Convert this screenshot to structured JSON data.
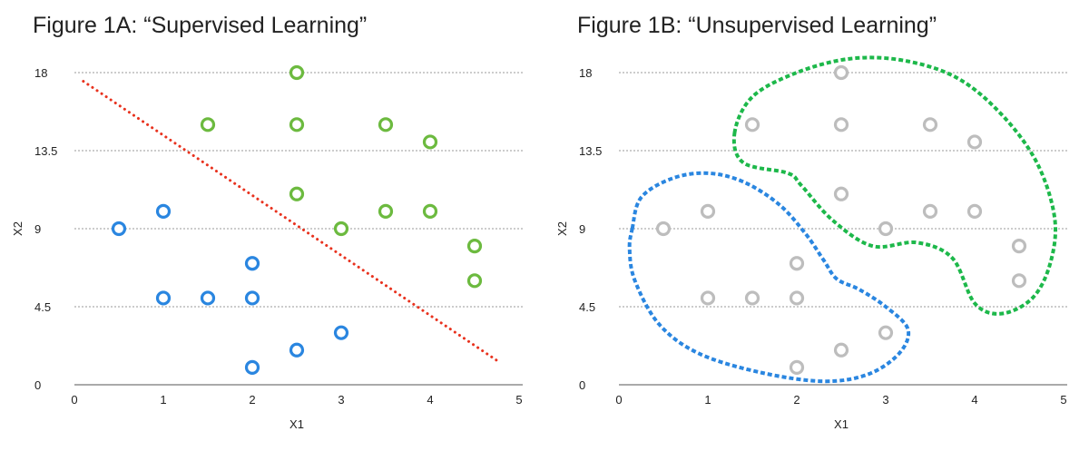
{
  "chart_data": [
    {
      "type": "scatter",
      "title": "Figure 1A: “Supervised Learning”",
      "xlabel": "X1",
      "ylabel": "X2",
      "xlim": [
        0,
        5
      ],
      "ylim": [
        0,
        18
      ],
      "xticks": [
        "0",
        "1",
        "2",
        "3",
        "4",
        "5"
      ],
      "yticks": [
        "0",
        "4.5",
        "9",
        "13.5",
        "18"
      ],
      "grid": "horizontal dotted",
      "series": [
        {
          "color": "#2a86e0",
          "points": [
            [
              0.5,
              9
            ],
            [
              1,
              10
            ],
            [
              1,
              5
            ],
            [
              1.5,
              5
            ],
            [
              2,
              7
            ],
            [
              2,
              5
            ],
            [
              2,
              1
            ],
            [
              2.5,
              2
            ],
            [
              3,
              3
            ]
          ]
        },
        {
          "color": "#6cba3f",
          "points": [
            [
              2.5,
              18
            ],
            [
              1.5,
              15
            ],
            [
              2.5,
              15
            ],
            [
              3.5,
              15
            ],
            [
              4,
              14
            ],
            [
              2.5,
              11
            ],
            [
              3,
              9
            ],
            [
              3.5,
              10
            ],
            [
              4,
              10
            ],
            [
              4.5,
              8
            ],
            [
              4.5,
              6
            ]
          ]
        }
      ],
      "boundary": {
        "color": "#e8321e",
        "points": [
          [
            0.1,
            17.5
          ],
          [
            4.75,
            1.4
          ]
        ]
      }
    },
    {
      "type": "scatter",
      "title": "Figure 1B: “Unsupervised Learning”",
      "xlabel": "X1",
      "ylabel": "X2",
      "xlim": [
        0,
        5
      ],
      "ylim": [
        0,
        18
      ],
      "xticks": [
        "0",
        "1",
        "2",
        "3",
        "4",
        "5"
      ],
      "yticks": [
        "0",
        "4.5",
        "9",
        "13.5",
        "18"
      ],
      "grid": "horizontal dotted",
      "series": [
        {
          "color": "#bdbdbd",
          "points": [
            [
              0.5,
              9
            ],
            [
              1,
              10
            ],
            [
              1,
              5
            ],
            [
              1.5,
              5
            ],
            [
              2,
              7
            ],
            [
              2,
              5
            ],
            [
              2,
              1
            ],
            [
              2.5,
              2
            ],
            [
              3,
              3
            ],
            [
              2.5,
              18
            ],
            [
              1.5,
              15
            ],
            [
              2.5,
              15
            ],
            [
              3.5,
              15
            ],
            [
              4,
              14
            ],
            [
              2.5,
              11
            ],
            [
              3,
              9
            ],
            [
              3.5,
              10
            ],
            [
              4,
              10
            ],
            [
              4.5,
              8
            ],
            [
              4.5,
              6
            ]
          ]
        }
      ],
      "clusters": [
        {
          "color": "#2a86e0",
          "outline": [
            [
              0.15,
              9
            ],
            [
              0.25,
              10.8
            ],
            [
              0.6,
              11.9
            ],
            [
              1.0,
              12.2
            ],
            [
              1.4,
              11.7
            ],
            [
              1.8,
              10.4
            ],
            [
              2.1,
              8.7
            ],
            [
              2.3,
              7.2
            ],
            [
              2.45,
              6.1
            ],
            [
              2.7,
              5.5
            ],
            [
              3.0,
              4.5
            ],
            [
              3.25,
              3.2
            ],
            [
              3.15,
              1.8
            ],
            [
              2.8,
              0.6
            ],
            [
              2.3,
              0.2
            ],
            [
              1.6,
              0.7
            ],
            [
              0.9,
              1.8
            ],
            [
              0.45,
              3.5
            ],
            [
              0.18,
              6
            ],
            [
              0.12,
              7.8
            ]
          ]
        },
        {
          "color": "#1db84a",
          "outline": [
            [
              1.3,
              14.5
            ],
            [
              1.5,
              16.6
            ],
            [
              2.0,
              18.0
            ],
            [
              2.6,
              18.8
            ],
            [
              3.2,
              18.7
            ],
            [
              3.8,
              17.7
            ],
            [
              4.3,
              15.6
            ],
            [
              4.7,
              12.8
            ],
            [
              4.9,
              9.6
            ],
            [
              4.85,
              7.0
            ],
            [
              4.65,
              5.0
            ],
            [
              4.3,
              4.1
            ],
            [
              4.0,
              4.7
            ],
            [
              3.75,
              7.3
            ],
            [
              3.35,
              8.2
            ],
            [
              2.85,
              8.0
            ],
            [
              2.4,
              9.5
            ],
            [
              2.05,
              11.5
            ],
            [
              1.9,
              12.2
            ],
            [
              1.4,
              12.8
            ]
          ]
        }
      ]
    }
  ]
}
